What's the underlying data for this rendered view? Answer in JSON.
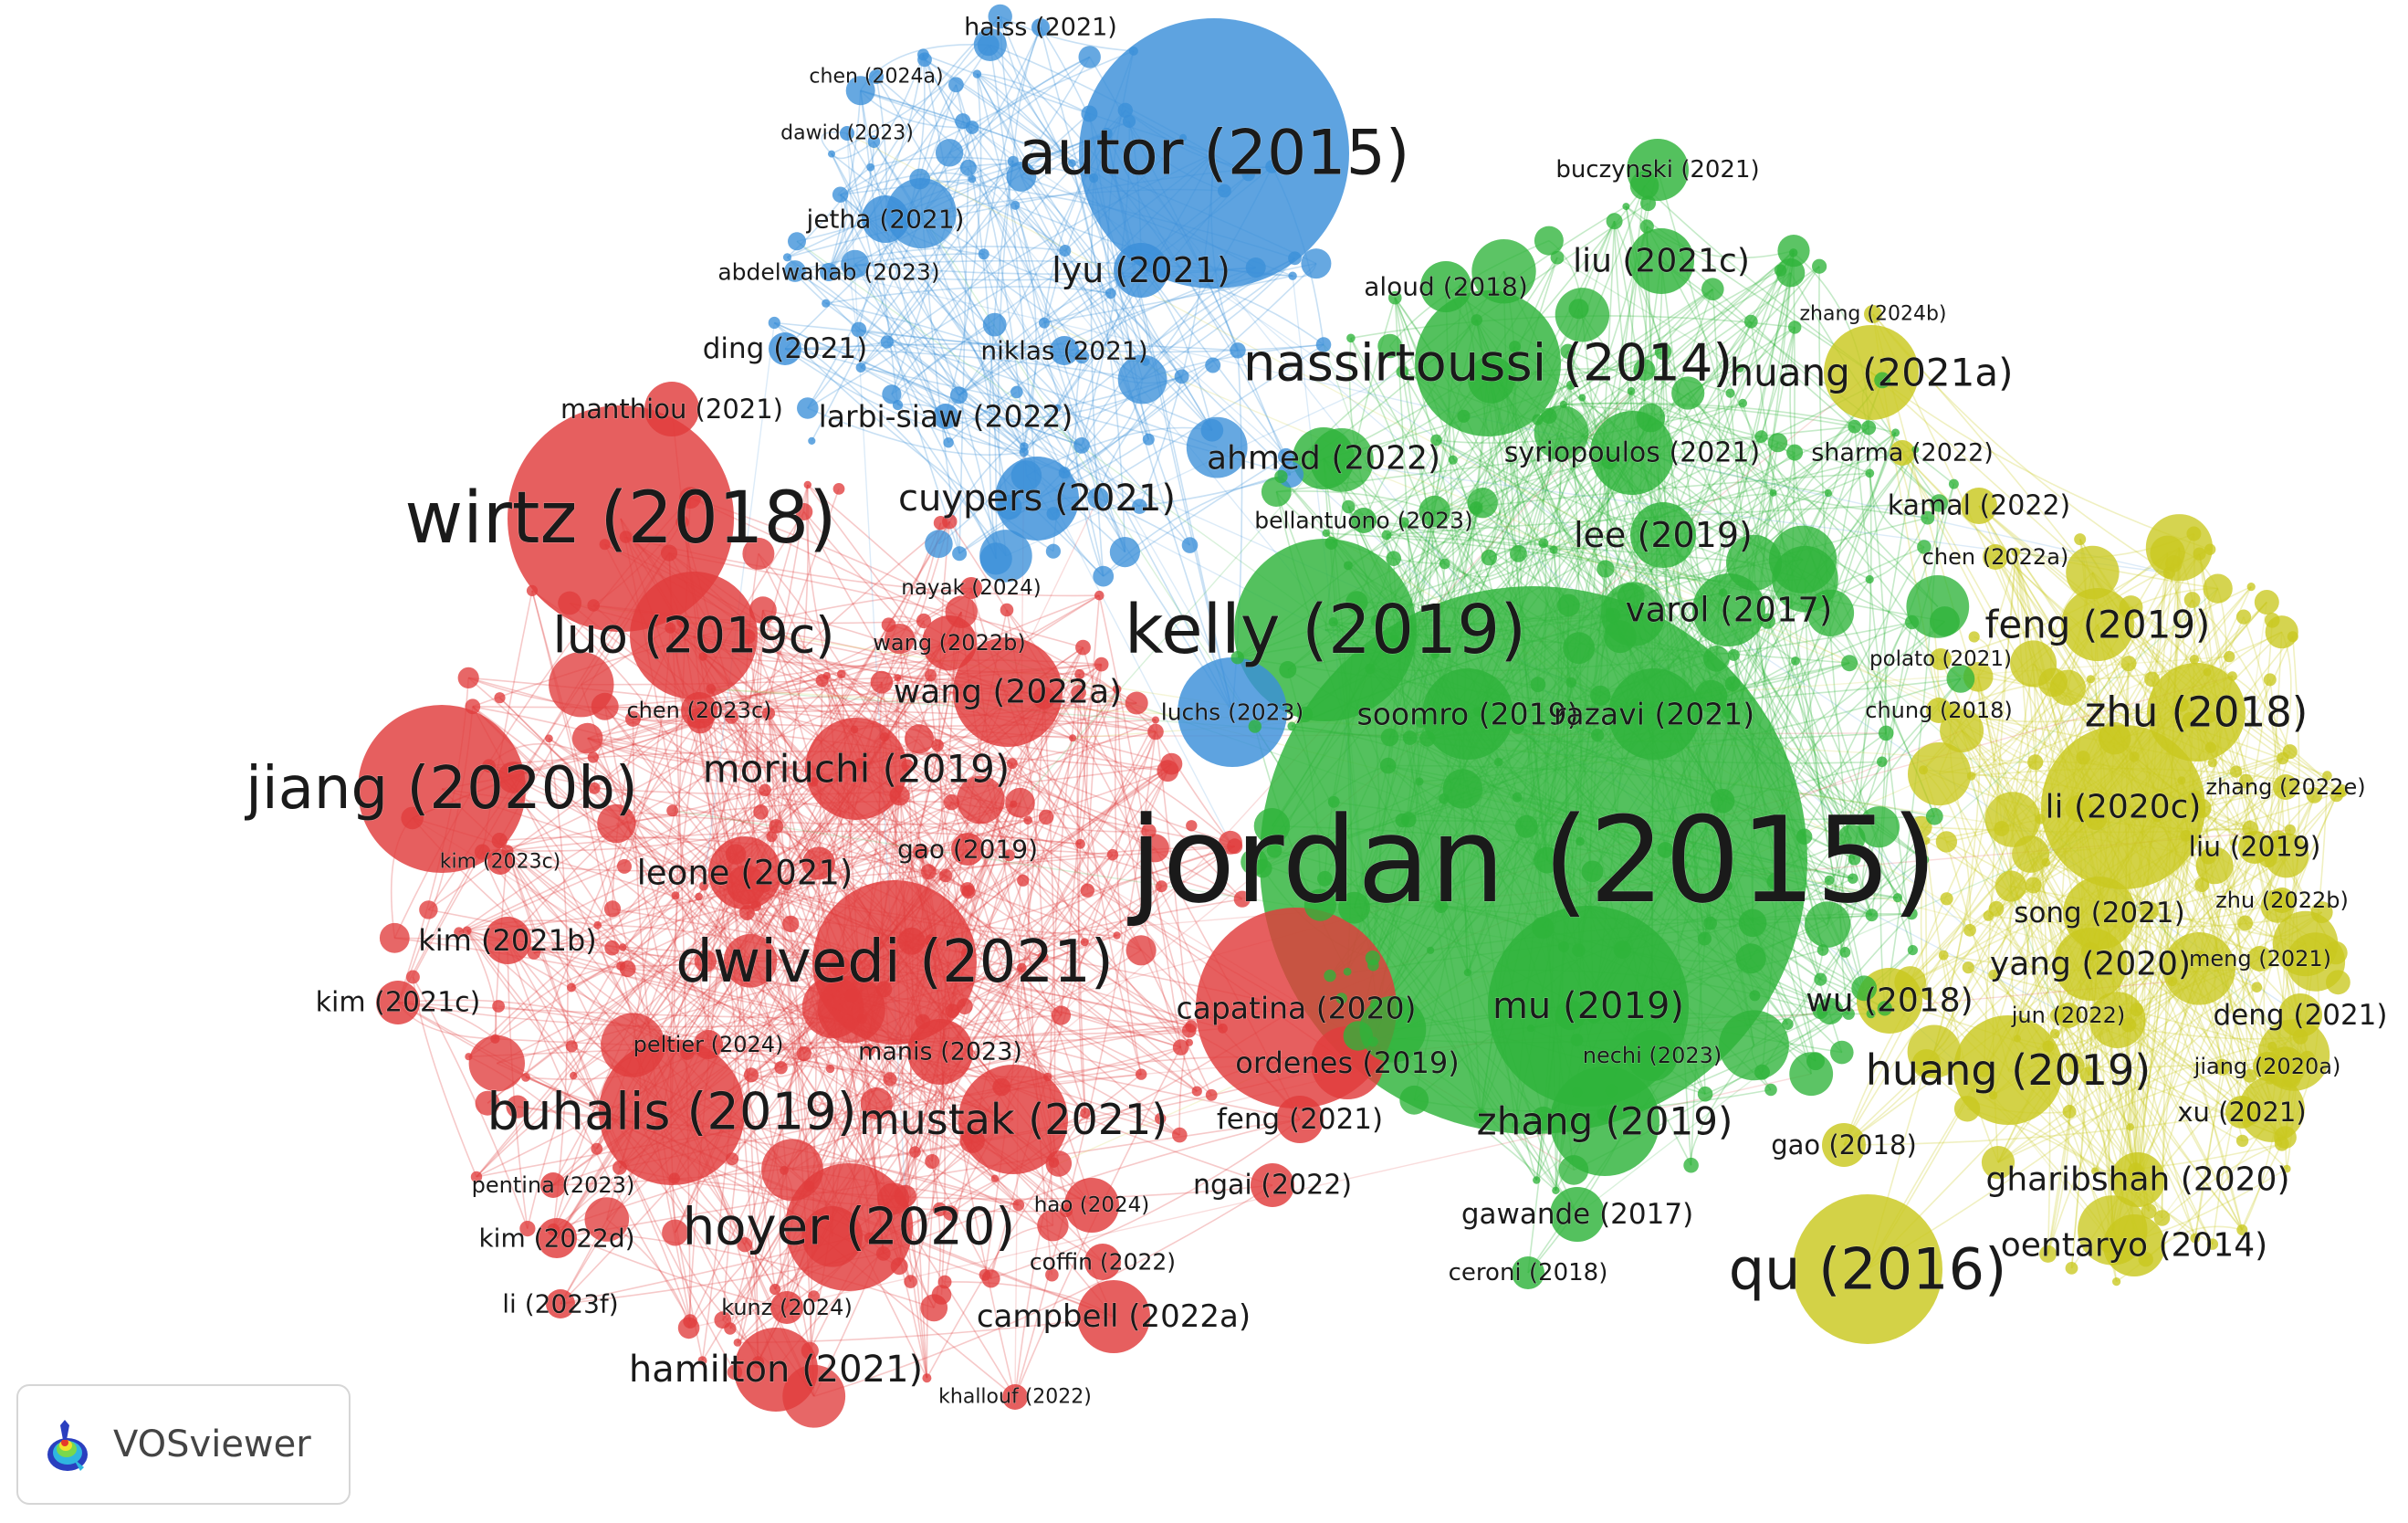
{
  "colors": {
    "red": "#e03c3c",
    "blue": "#3b8fd9",
    "green": "#2eb33a",
    "yellow": "#c9c81f"
  },
  "logo": {
    "name": "VOSviewer",
    "icon": "vosviewer-logo-icon"
  },
  "clusters": [
    {
      "color": "blue",
      "labels": [
        "autor (2015)",
        "haiss (2021)",
        "chen (2024a)",
        "dawid (2023)",
        "jetha (2021)",
        "lyu (2021)",
        "abdelwahab (2023)",
        "ding (2021)",
        "niklas (2021)",
        "larbi-siaw (2022)",
        "cuypers (2021)",
        "luchs (2023)"
      ]
    },
    {
      "color": "red",
      "labels": [
        "wirtz (2018)",
        "manthiou (2021)",
        "nayak (2024)",
        "luo (2019c)",
        "wang (2022b)",
        "wang (2022a)",
        "chen (2023c)",
        "jiang (2020b)",
        "moriuchi (2019)",
        "gao (2019)",
        "kim (2023c)",
        "leone (2021)",
        "kim (2021b)",
        "dwivedi (2021)",
        "kim (2021c)",
        "capatina (2020)",
        "peltier (2024)",
        "manis (2023)",
        "ordenes (2019)",
        "buhalis (2019)",
        "mustak (2021)",
        "feng (2021)",
        "pentina (2023)",
        "hao (2024)",
        "ngai (2022)",
        "kim (2022d)",
        "hoyer (2020)",
        "coffin (2022)",
        "li (2023f)",
        "kunz (2024)",
        "campbell (2022a)",
        "hamilton (2021)",
        "khallouf (2022)"
      ]
    },
    {
      "color": "green",
      "labels": [
        "jordan (2015)",
        "buczynski (2021)",
        "liu (2021c)",
        "aloud (2018)",
        "nassirtoussi (2014)",
        "ahmed (2022)",
        "syriopoulos (2021)",
        "bellantuono (2023)",
        "lee (2019)",
        "kelly (2019)",
        "varol (2017)",
        "soomro (2019)",
        "razavi (2021)",
        "mu (2019)",
        "nechi (2023)",
        "zhang (2019)",
        "gawande (2017)",
        "ceroni (2018)"
      ]
    },
    {
      "color": "yellow",
      "labels": [
        "zhang (2024b)",
        "huang (2021a)",
        "sharma (2022)",
        "kamal (2022)",
        "chen (2022a)",
        "feng (2019)",
        "polato (2021)",
        "chung (2018)",
        "zhu (2018)",
        "zhang (2022e)",
        "li (2020c)",
        "liu (2019)",
        "zhu (2022b)",
        "song (2021)",
        "yang (2020)",
        "meng (2021)",
        "wu (2018)",
        "jun (2022)",
        "deng (2021)",
        "huang (2019)",
        "jiang (2020a)",
        "xu (2021)",
        "gao (2018)",
        "gharibshah (2020)",
        "qu (2016)",
        "oentaryo (2014)"
      ]
    }
  ]
}
